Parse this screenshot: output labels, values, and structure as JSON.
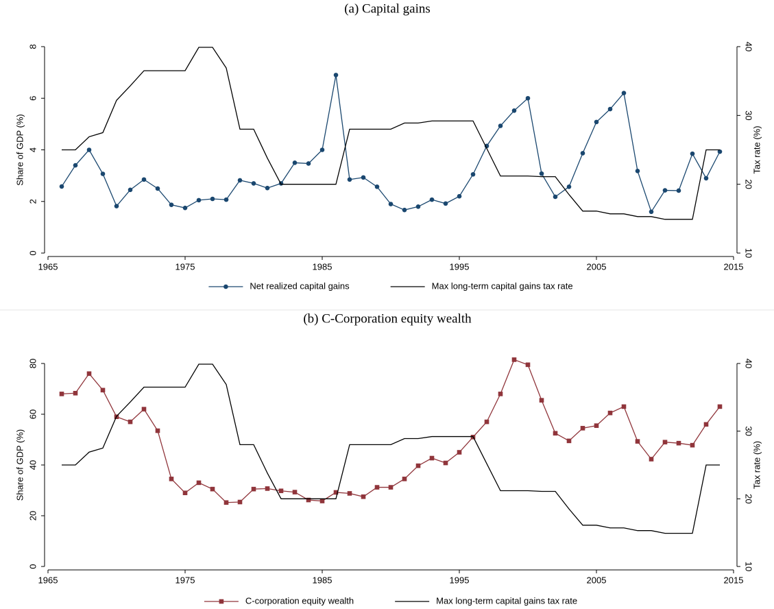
{
  "chart_data": [
    {
      "type": "line",
      "title": "(a) Capital gains",
      "x": [
        1966,
        1967,
        1968,
        1969,
        1970,
        1971,
        1972,
        1973,
        1974,
        1975,
        1976,
        1977,
        1978,
        1979,
        1980,
        1981,
        1982,
        1983,
        1984,
        1985,
        1986,
        1987,
        1988,
        1989,
        1990,
        1991,
        1992,
        1993,
        1994,
        1995,
        1996,
        1997,
        1998,
        1999,
        2000,
        2001,
        2002,
        2003,
        2004,
        2005,
        2006,
        2007,
        2008,
        2009,
        2010,
        2011,
        2012,
        2013,
        2014
      ],
      "y_label": "Share of GDP (%)",
      "y2_label": "Tax rate (%)",
      "xlim": [
        1965,
        2015
      ],
      "xticks": [
        1965,
        1975,
        1985,
        1995,
        2005,
        2015
      ],
      "ylim": [
        0,
        8
      ],
      "yticks": [
        0,
        2,
        4,
        6,
        8
      ],
      "y2lim": [
        10,
        40
      ],
      "y2ticks": [
        10,
        20,
        30,
        40
      ],
      "legend": "bottom",
      "series": [
        {
          "name": "Net realized capital gains",
          "color": "#1a476f",
          "marker": "circle",
          "values": [
            2.58,
            3.4,
            4.0,
            3.07,
            1.82,
            2.45,
            2.85,
            2.5,
            1.87,
            1.75,
            2.05,
            2.1,
            2.07,
            2.82,
            2.7,
            2.52,
            2.7,
            3.5,
            3.47,
            4.0,
            6.9,
            2.85,
            2.93,
            2.57,
            1.9,
            1.67,
            1.8,
            2.07,
            1.92,
            2.2,
            3.05,
            4.15,
            4.93,
            5.52,
            6.0,
            3.08,
            2.18,
            2.57,
            3.87,
            5.08,
            5.58,
            6.2,
            3.18,
            1.6,
            2.43,
            2.42,
            3.85,
            2.9,
            3.93
          ]
        },
        {
          "name": "Max long-term capital gains tax rate",
          "color": "#000000",
          "axis": "y2",
          "values": [
            25,
            25,
            26.9,
            27.5,
            32.2,
            34.3,
            36.5,
            36.5,
            36.5,
            36.5,
            39.9,
            39.9,
            36.9,
            28,
            28,
            23.8,
            20,
            20,
            20,
            20,
            20,
            28,
            28,
            28,
            28,
            28.9,
            28.9,
            29.2,
            29.2,
            29.2,
            29.2,
            25.2,
            21.2,
            21.2,
            21.2,
            21.1,
            21.1,
            18.5,
            16.1,
            16.1,
            15.7,
            15.7,
            15.3,
            15.3,
            14.9,
            14.9,
            14.9,
            25,
            25
          ]
        }
      ]
    },
    {
      "type": "line",
      "title": "(b) C-Corporation equity wealth",
      "x": [
        1966,
        1967,
        1968,
        1969,
        1970,
        1971,
        1972,
        1973,
        1974,
        1975,
        1976,
        1977,
        1978,
        1979,
        1980,
        1981,
        1982,
        1983,
        1984,
        1985,
        1986,
        1987,
        1988,
        1989,
        1990,
        1991,
        1992,
        1993,
        1994,
        1995,
        1996,
        1997,
        1998,
        1999,
        2000,
        2001,
        2002,
        2003,
        2004,
        2005,
        2006,
        2007,
        2008,
        2009,
        2010,
        2011,
        2012,
        2013,
        2014
      ],
      "y_label": "Share of GDP (%)",
      "y2_label": "Tax rate (%)",
      "xlim": [
        1965,
        2015
      ],
      "xticks": [
        1965,
        1975,
        1985,
        1995,
        2005,
        2015
      ],
      "ylim": [
        0,
        80
      ],
      "yticks": [
        0,
        20,
        40,
        60,
        80
      ],
      "y2lim": [
        10,
        40
      ],
      "y2ticks": [
        10,
        20,
        30,
        40
      ],
      "legend": "bottom",
      "series": [
        {
          "name": "C-corporation equity wealth",
          "color": "#90353b",
          "marker": "square",
          "values": [
            68,
            68.3,
            76,
            69.5,
            59,
            57,
            62,
            53.5,
            34.5,
            29,
            33,
            30.5,
            25.2,
            25.4,
            30.5,
            30.7,
            29.8,
            29.3,
            26.2,
            25.8,
            29.2,
            28.8,
            27.5,
            31.2,
            31.2,
            34.5,
            39.7,
            42.7,
            40.8,
            45,
            51,
            57,
            68,
            81.5,
            79.5,
            65.5,
            52.5,
            49.5,
            54.5,
            55.5,
            60.5,
            63,
            49.3,
            42.3,
            49,
            48.6,
            47.8,
            56,
            63
          ]
        },
        {
          "name": "Max long-term capital gains tax rate",
          "color": "#000000",
          "axis": "y2",
          "values": [
            25,
            25,
            26.9,
            27.5,
            32.2,
            34.3,
            36.5,
            36.5,
            36.5,
            36.5,
            39.9,
            39.9,
            36.9,
            28,
            28,
            23.8,
            20,
            20,
            20,
            20,
            20,
            28,
            28,
            28,
            28,
            28.9,
            28.9,
            29.2,
            29.2,
            29.2,
            29.2,
            25.2,
            21.2,
            21.2,
            21.2,
            21.1,
            21.1,
            18.5,
            16.1,
            16.1,
            15.7,
            15.7,
            15.3,
            15.3,
            14.9,
            14.9,
            14.9,
            25,
            25
          ]
        }
      ]
    }
  ]
}
